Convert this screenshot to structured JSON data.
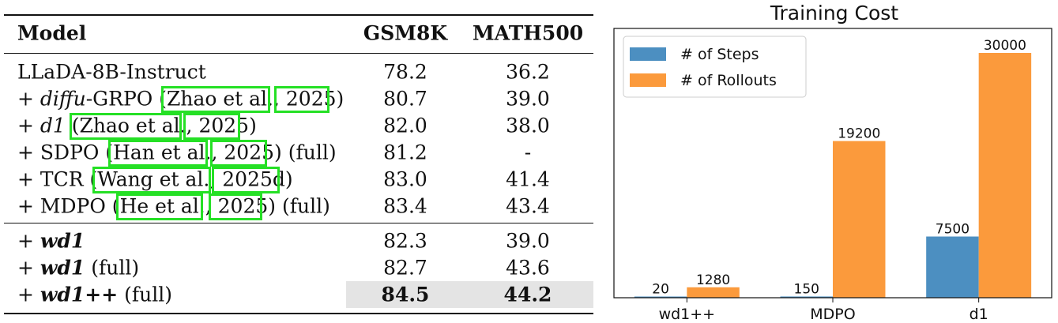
{
  "table": {
    "columns": [
      "Model",
      "GSM8K",
      "MATH500"
    ],
    "baselines": [
      {
        "prefix": "LLaDA-8B-Instruct",
        "name": "",
        "cite_author": "",
        "cite_year": "",
        "suffix": "",
        "gsm8k": "78.2",
        "math500": "36.2"
      },
      {
        "prefix": "+ ",
        "name": "diffu",
        "name_rest": "-GRPO",
        "cite_author": "Zhao et al.",
        "cite_year": "2025",
        "suffix": "",
        "gsm8k": "80.7",
        "math500": "39.0"
      },
      {
        "prefix": "+ ",
        "name": "d1",
        "name_rest": "",
        "cite_author": "Zhao et al.",
        "cite_year": "2025",
        "suffix": "",
        "gsm8k": "82.0",
        "math500": "38.0"
      },
      {
        "prefix": "+ SDPO",
        "name": "",
        "name_rest": "",
        "cite_author": "Han et al.",
        "cite_year": "2025",
        "suffix": " (full)",
        "gsm8k": "81.2",
        "math500": "-"
      },
      {
        "prefix": "+ TCR",
        "name": "",
        "name_rest": "",
        "cite_author": "Wang et al.",
        "cite_year": "2025d",
        "suffix": "",
        "gsm8k": "83.0",
        "math500": "41.4"
      },
      {
        "prefix": "+ MDPO",
        "name": "",
        "name_rest": "",
        "cite_author": "He et al.",
        "cite_year": "2025",
        "suffix": " (full)",
        "gsm8k": "83.4",
        "math500": "43.4"
      }
    ],
    "ours": [
      {
        "prefix": "+ ",
        "name": "wd1",
        "suffix": "",
        "gsm8k": "82.3",
        "math500": "39.0"
      },
      {
        "prefix": "+ ",
        "name": "wd1",
        "suffix": " (full)",
        "gsm8k": "82.7",
        "math500": "43.6"
      },
      {
        "prefix": "+ ",
        "name": "wd1++",
        "suffix": " (full)",
        "gsm8k": "84.5",
        "math500": "44.2"
      }
    ]
  },
  "chart_data": {
    "type": "bar",
    "title": "Training Cost",
    "categories": [
      "wd1++",
      "MDPO",
      "d1"
    ],
    "series": [
      {
        "name": "# of Steps",
        "values": [
          20,
          150,
          7500
        ],
        "color": "#4c8fc1"
      },
      {
        "name": "# of Rollouts",
        "values": [
          1280,
          19200,
          30000
        ],
        "color": "#fb9a3c"
      }
    ],
    "ylim": [
      0,
      33000
    ],
    "legend": "top-left",
    "data_labels": true
  }
}
